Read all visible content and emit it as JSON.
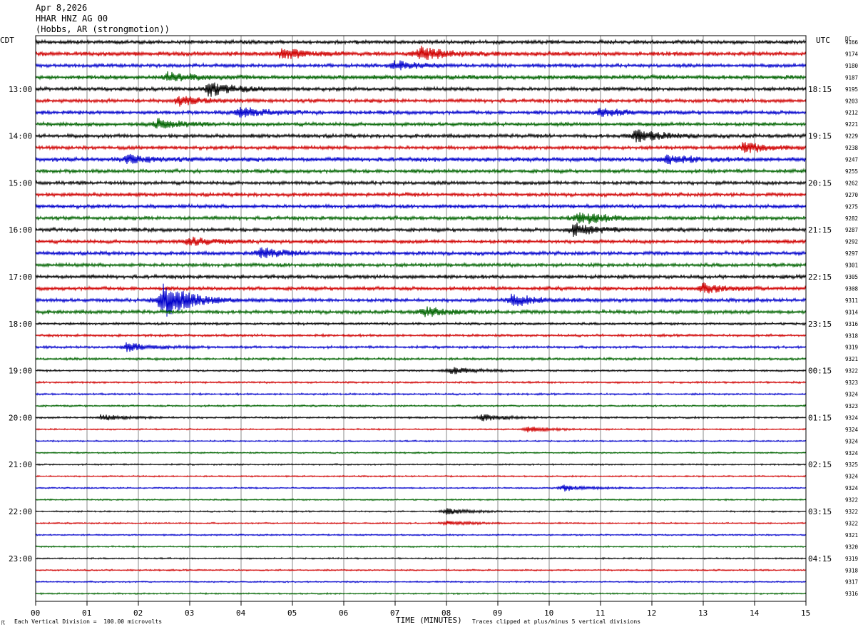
{
  "header": {
    "date": "Apr 8,2026",
    "channel": "HHAR HNZ AG 00",
    "location": "(Hobbs, AR (strongmotion))"
  },
  "labels": {
    "left_tz": "CDT",
    "right_tz": "UTC",
    "dc": "DC"
  },
  "footer": {
    "scale_note": "Each Vertical Division =  100.00 microvolts",
    "clip_note": "Traces clipped at plus/minus 5 vertical divisions",
    "corner_mark": "☈"
  },
  "chart_data": {
    "type": "line",
    "title": "",
    "xlabel": "TIME (MINUTES)",
    "x_ticks": [
      "00",
      "01",
      "02",
      "03",
      "04",
      "05",
      "06",
      "07",
      "08",
      "09",
      "10",
      "11",
      "12",
      "13",
      "14",
      "15"
    ],
    "xlim": [
      0,
      15
    ],
    "grid": true,
    "trace_colors": [
      "#000000",
      "#d00000",
      "#0000cc",
      "#006400"
    ],
    "rows": 48,
    "minutes_per_row": 15,
    "cdt_labels": [
      "13:00",
      "14:00",
      "15:00",
      "16:00",
      "17:00",
      "18:00",
      "19:00",
      "20:00",
      "21:00",
      "22:00",
      "23:00"
    ],
    "utc_labels": [
      "18:15",
      "19:15",
      "20:15",
      "21:15",
      "22:15",
      "23:15",
      "00:15",
      "01:15",
      "02:15",
      "03:15",
      "04:15"
    ],
    "hour_label_first_row": 4,
    "dc_values": [
      "9166",
      "9174",
      "9180",
      "9187",
      "9195",
      "9203",
      "9212",
      "9221",
      "9229",
      "9238",
      "9247",
      "9255",
      "9262",
      "9270",
      "9275",
      "9282",
      "9287",
      "9292",
      "9297",
      "9301",
      "9305",
      "9308",
      "9311",
      "9314",
      "9316",
      "9318",
      "9319",
      "9321",
      "9322",
      "9323",
      "9324",
      "9323",
      "9324",
      "9324",
      "9324",
      "9324",
      "9325",
      "9324",
      "9324",
      "9322",
      "9322",
      "9322",
      "9321",
      "9320",
      "9319",
      "9318",
      "9317",
      "9316"
    ],
    "noise_levels": [
      3,
      3.5,
      3,
      3.5,
      3,
      3,
      3,
      3,
      3,
      3,
      3.5,
      3,
      3,
      3,
      3,
      3,
      3,
      3,
      3,
      3,
      3,
      3,
      3,
      3,
      2,
      2,
      2,
      2,
      1.5,
      1.5,
      1.5,
      1.5,
      1.5,
      1.2,
      1.2,
      1.2,
      1.2,
      1.2,
      1.2,
      1.2,
      1.2,
      1.2,
      1.2,
      1.2,
      1.2,
      1.2,
      1.2,
      1.2
    ],
    "events": [
      {
        "row": 1,
        "minute": 4.8,
        "amplitude": 7
      },
      {
        "row": 1,
        "minute": 7.5,
        "amplitude": 9
      },
      {
        "row": 2,
        "minute": 7.0,
        "amplitude": 6
      },
      {
        "row": 3,
        "minute": 2.6,
        "amplitude": 6
      },
      {
        "row": 4,
        "minute": 3.4,
        "amplitude": 10
      },
      {
        "row": 5,
        "minute": 2.8,
        "amplitude": 6
      },
      {
        "row": 6,
        "minute": 4.0,
        "amplitude": 7
      },
      {
        "row": 6,
        "minute": 11.0,
        "amplitude": 6
      },
      {
        "row": 7,
        "minute": 2.4,
        "amplitude": 6
      },
      {
        "row": 8,
        "minute": 11.7,
        "amplitude": 9
      },
      {
        "row": 9,
        "minute": 13.8,
        "amplitude": 7
      },
      {
        "row": 10,
        "minute": 1.8,
        "amplitude": 6
      },
      {
        "row": 10,
        "minute": 12.3,
        "amplitude": 6
      },
      {
        "row": 15,
        "minute": 10.6,
        "amplitude": 9
      },
      {
        "row": 16,
        "minute": 10.5,
        "amplitude": 8
      },
      {
        "row": 17,
        "minute": 3.0,
        "amplitude": 6
      },
      {
        "row": 18,
        "minute": 4.4,
        "amplitude": 7
      },
      {
        "row": 21,
        "minute": 13.0,
        "amplitude": 6
      },
      {
        "row": 22,
        "minute": 2.5,
        "amplitude": 26
      },
      {
        "row": 22,
        "minute": 9.3,
        "amplitude": 8
      },
      {
        "row": 23,
        "minute": 7.6,
        "amplitude": 6
      },
      {
        "row": 26,
        "minute": 1.8,
        "amplitude": 6
      },
      {
        "row": 28,
        "minute": 8.1,
        "amplitude": 5
      },
      {
        "row": 32,
        "minute": 1.3,
        "amplitude": 4
      },
      {
        "row": 32,
        "minute": 8.7,
        "amplitude": 4
      },
      {
        "row": 33,
        "minute": 9.6,
        "amplitude": 4
      },
      {
        "row": 38,
        "minute": 10.3,
        "amplitude": 4
      },
      {
        "row": 40,
        "minute": 8.0,
        "amplitude": 4
      },
      {
        "row": 41,
        "minute": 8.0,
        "amplitude": 3
      }
    ]
  }
}
